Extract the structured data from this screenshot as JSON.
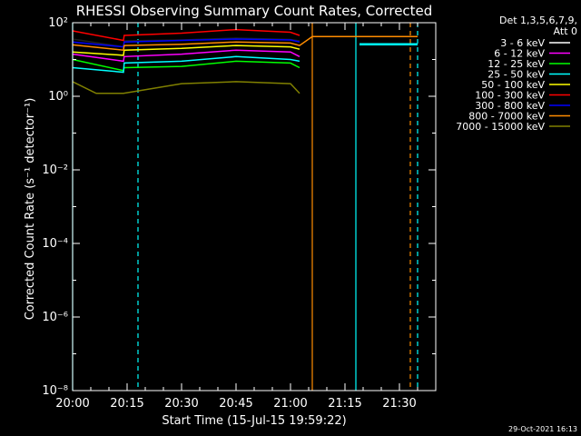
{
  "chart_data": {
    "type": "line",
    "title": "RHESSI Observing Summary Count Rates, Corrected",
    "xlabel": "Start Time (15-Jul-15 19:59:22)",
    "ylabel": "Corrected Count Rate (s⁻¹ detector⁻¹)",
    "yscale": "log",
    "ylim": [
      1e-08,
      100
    ],
    "xlim_minutes": [
      0,
      100
    ],
    "x_ticks": [
      {
        "m": 0,
        "label": "20:00"
      },
      {
        "m": 15,
        "label": "20:15"
      },
      {
        "m": 30,
        "label": "20:30"
      },
      {
        "m": 45,
        "label": "20:45"
      },
      {
        "m": 60,
        "label": "21:00"
      },
      {
        "m": 75,
        "label": "21:15"
      },
      {
        "m": 90,
        "label": "21:30"
      }
    ],
    "y_ticks": [
      {
        "v": 100,
        "label": "10²"
      },
      {
        "v": 1,
        "label": "10⁰"
      },
      {
        "v": 0.01,
        "label": "10⁻²"
      },
      {
        "v": 0.0001,
        "label": "10⁻⁴"
      },
      {
        "v": 1e-06,
        "label": "10⁻⁶"
      },
      {
        "v": 1e-08,
        "label": "10⁻⁸"
      }
    ],
    "legend_header": [
      "Det 1,3,5,6,7,9,",
      "Att 0"
    ],
    "legend_position": "right",
    "series": [
      {
        "name": "3 - 6 keV",
        "color": "#000000",
        "x": [
          0,
          14,
          14.2,
          30,
          45,
          60,
          62.5
        ],
        "y": [
          36,
          22,
          32,
          34,
          38,
          35,
          32
        ]
      },
      {
        "name": "6 - 12 keV",
        "color": "#ff00ff",
        "x": [
          0,
          14,
          14.2,
          30,
          45,
          60,
          62.5
        ],
        "y": [
          14,
          9,
          12,
          14,
          18,
          16,
          12
        ]
      },
      {
        "name": "12 - 25 keV",
        "color": "#00ff00",
        "x": [
          0,
          14,
          14.2,
          30,
          45,
          60,
          62.5
        ],
        "y": [
          10,
          5,
          6,
          6.5,
          9,
          8,
          6
        ]
      },
      {
        "name": "25 - 50 keV",
        "color": "#00ffff",
        "x": [
          0,
          14,
          14.2,
          30,
          45,
          60,
          62.5
        ],
        "y": [
          6,
          4.5,
          8,
          9,
          12,
          10,
          9
        ]
      },
      {
        "name": "50 - 100 keV",
        "color": "#ffff00",
        "x": [
          0,
          14,
          14.2,
          30,
          45,
          60,
          62.5
        ],
        "y": [
          16,
          13,
          18,
          20,
          24,
          22,
          19
        ]
      },
      {
        "name": "100 - 300 keV",
        "color": "#ff0000",
        "x": [
          0,
          14,
          14.2,
          30,
          45,
          60,
          62.5
        ],
        "y": [
          60,
          33,
          45,
          52,
          65,
          55,
          45
        ]
      },
      {
        "name": "300 - 800 keV",
        "color": "#0000ff",
        "x": [
          0,
          14,
          14.2,
          30,
          45,
          60,
          62.5
        ],
        "y": [
          30,
          22,
          30,
          33,
          36,
          34,
          30
        ]
      },
      {
        "name": "800 - 7000 keV",
        "color": "#ff8c00",
        "x": [
          0,
          14,
          14.2,
          30,
          45,
          60,
          62.5,
          66,
          95
        ],
        "y": [
          25,
          18,
          24,
          26,
          30,
          28,
          24,
          42,
          42
        ]
      },
      {
        "name": "7000 - 15000 keV",
        "color": "#808000",
        "x": [
          0,
          6.5,
          14,
          30,
          45,
          60,
          62.5
        ],
        "y": [
          2.5,
          1.2,
          1.2,
          2.2,
          2.5,
          2.2,
          1.2
        ]
      }
    ],
    "extra_segment": {
      "color": "#00ffff",
      "x": [
        79,
        95
      ],
      "y": [
        26,
        26
      ]
    },
    "markers": [
      {
        "m": 66,
        "color": "#ff8c00",
        "style": "solid"
      },
      {
        "m": 78,
        "color": "#00ffff",
        "style": "solid"
      },
      {
        "m": 93,
        "color": "#ff8c00",
        "style": "dashed"
      },
      {
        "m": 95,
        "color": "#00ffff",
        "style": "dashed"
      },
      {
        "m": 18,
        "color": "#00ffff",
        "style": "dashed"
      },
      {
        "m": 0,
        "color": "#00ffff",
        "style": "solid"
      }
    ],
    "grid": false
  },
  "footer_timestamp": "29-Oct-2021 16:13"
}
